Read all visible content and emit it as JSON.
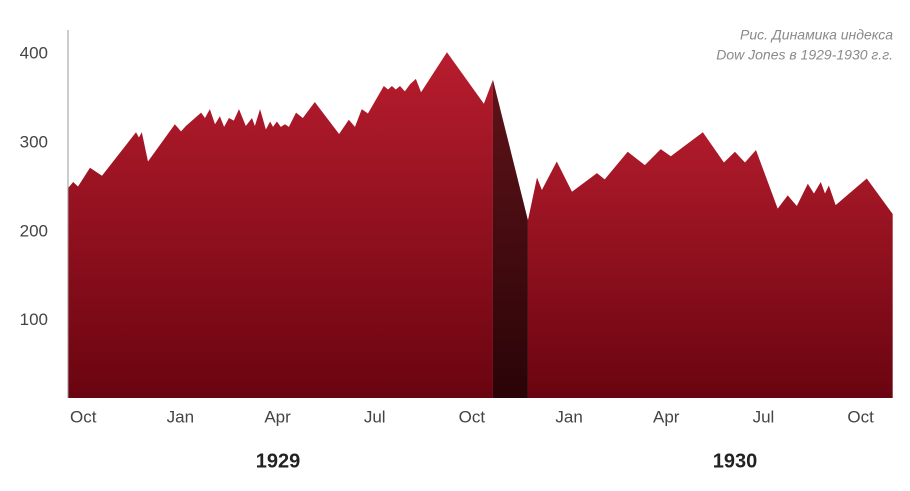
{
  "chart_data": {
    "type": "area",
    "title": [
      "Рис. Динамика индекса",
      "Dow Jones в 1929-1930 г.г."
    ],
    "year_labels": [
      "1929",
      "1930"
    ],
    "xlim": [
      0,
      25.5
    ],
    "ylim": [
      13,
      427
    ],
    "yticks": [
      100,
      200,
      300,
      400
    ],
    "xticks": [
      {
        "value": 0.5,
        "label": "Oct"
      },
      {
        "value": 3.5,
        "label": "Jan"
      },
      {
        "value": 6.5,
        "label": "Apr"
      },
      {
        "value": 9.5,
        "label": "Jul"
      },
      {
        "value": 12.5,
        "label": "Oct"
      },
      {
        "value": 15.5,
        "label": "Jan"
      },
      {
        "value": 18.5,
        "label": "Apr"
      },
      {
        "value": 21.5,
        "label": "Jul"
      },
      {
        "value": 24.5,
        "label": "Oct"
      }
    ],
    "grid": false,
    "series": [
      {
        "color": [
          "#b81d2e",
          "#6a0410"
        ],
        "x": [
          0.03,
          0.19,
          0.34,
          0.71,
          1.08,
          2.13,
          2.22,
          2.31,
          2.5,
          3.33,
          3.52,
          3.67,
          4.14,
          4.26,
          4.41,
          4.57,
          4.72,
          4.85,
          5.0,
          5.15,
          5.31,
          5.52,
          5.71,
          5.8,
          5.96,
          6.14,
          6.27,
          6.36,
          6.48,
          6.6,
          6.73,
          6.85,
          7.07,
          7.28,
          7.65,
          8.4,
          8.7,
          8.89,
          9.1,
          9.29,
          9.78,
          9.91,
          10.03,
          10.15,
          10.28,
          10.43,
          10.59,
          10.77,
          10.93,
          11.73,
          12.87,
          13.15
        ],
        "values": [
          249,
          256,
          251,
          272,
          263,
          312,
          306,
          312,
          279,
          321,
          313,
          319,
          334,
          328,
          338,
          321,
          330,
          318,
          328,
          325,
          338,
          319,
          328,
          319,
          338,
          315,
          324,
          318,
          324,
          318,
          321,
          318,
          334,
          328,
          346,
          310,
          326,
          318,
          338,
          333,
          364,
          360,
          364,
          360,
          364,
          358,
          366,
          372,
          357,
          402,
          344,
          371
        ]
      },
      {
        "color": [
          "#5e1319",
          "#2a0407"
        ],
        "x": [
          13.15,
          14.23
        ],
        "values": [
          371,
          213
        ]
      },
      {
        "color": [
          "#b01b2b",
          "#6a0410"
        ],
        "x": [
          14.23,
          14.51,
          14.66,
          15.12,
          15.59,
          16.36,
          16.6,
          17.31,
          17.84,
          18.33,
          18.64,
          19.63,
          20.28,
          20.62,
          20.93,
          21.27,
          21.94,
          22.25,
          22.53,
          22.87,
          23.06,
          23.27,
          23.4,
          23.52,
          23.73,
          24.69,
          25.49
        ],
        "values": [
          213,
          261,
          247,
          279,
          245,
          266,
          259,
          290,
          275,
          293,
          285,
          312,
          278,
          290,
          278,
          292,
          226,
          241,
          229,
          254,
          243,
          256,
          243,
          252,
          230,
          260,
          220
        ]
      }
    ]
  }
}
